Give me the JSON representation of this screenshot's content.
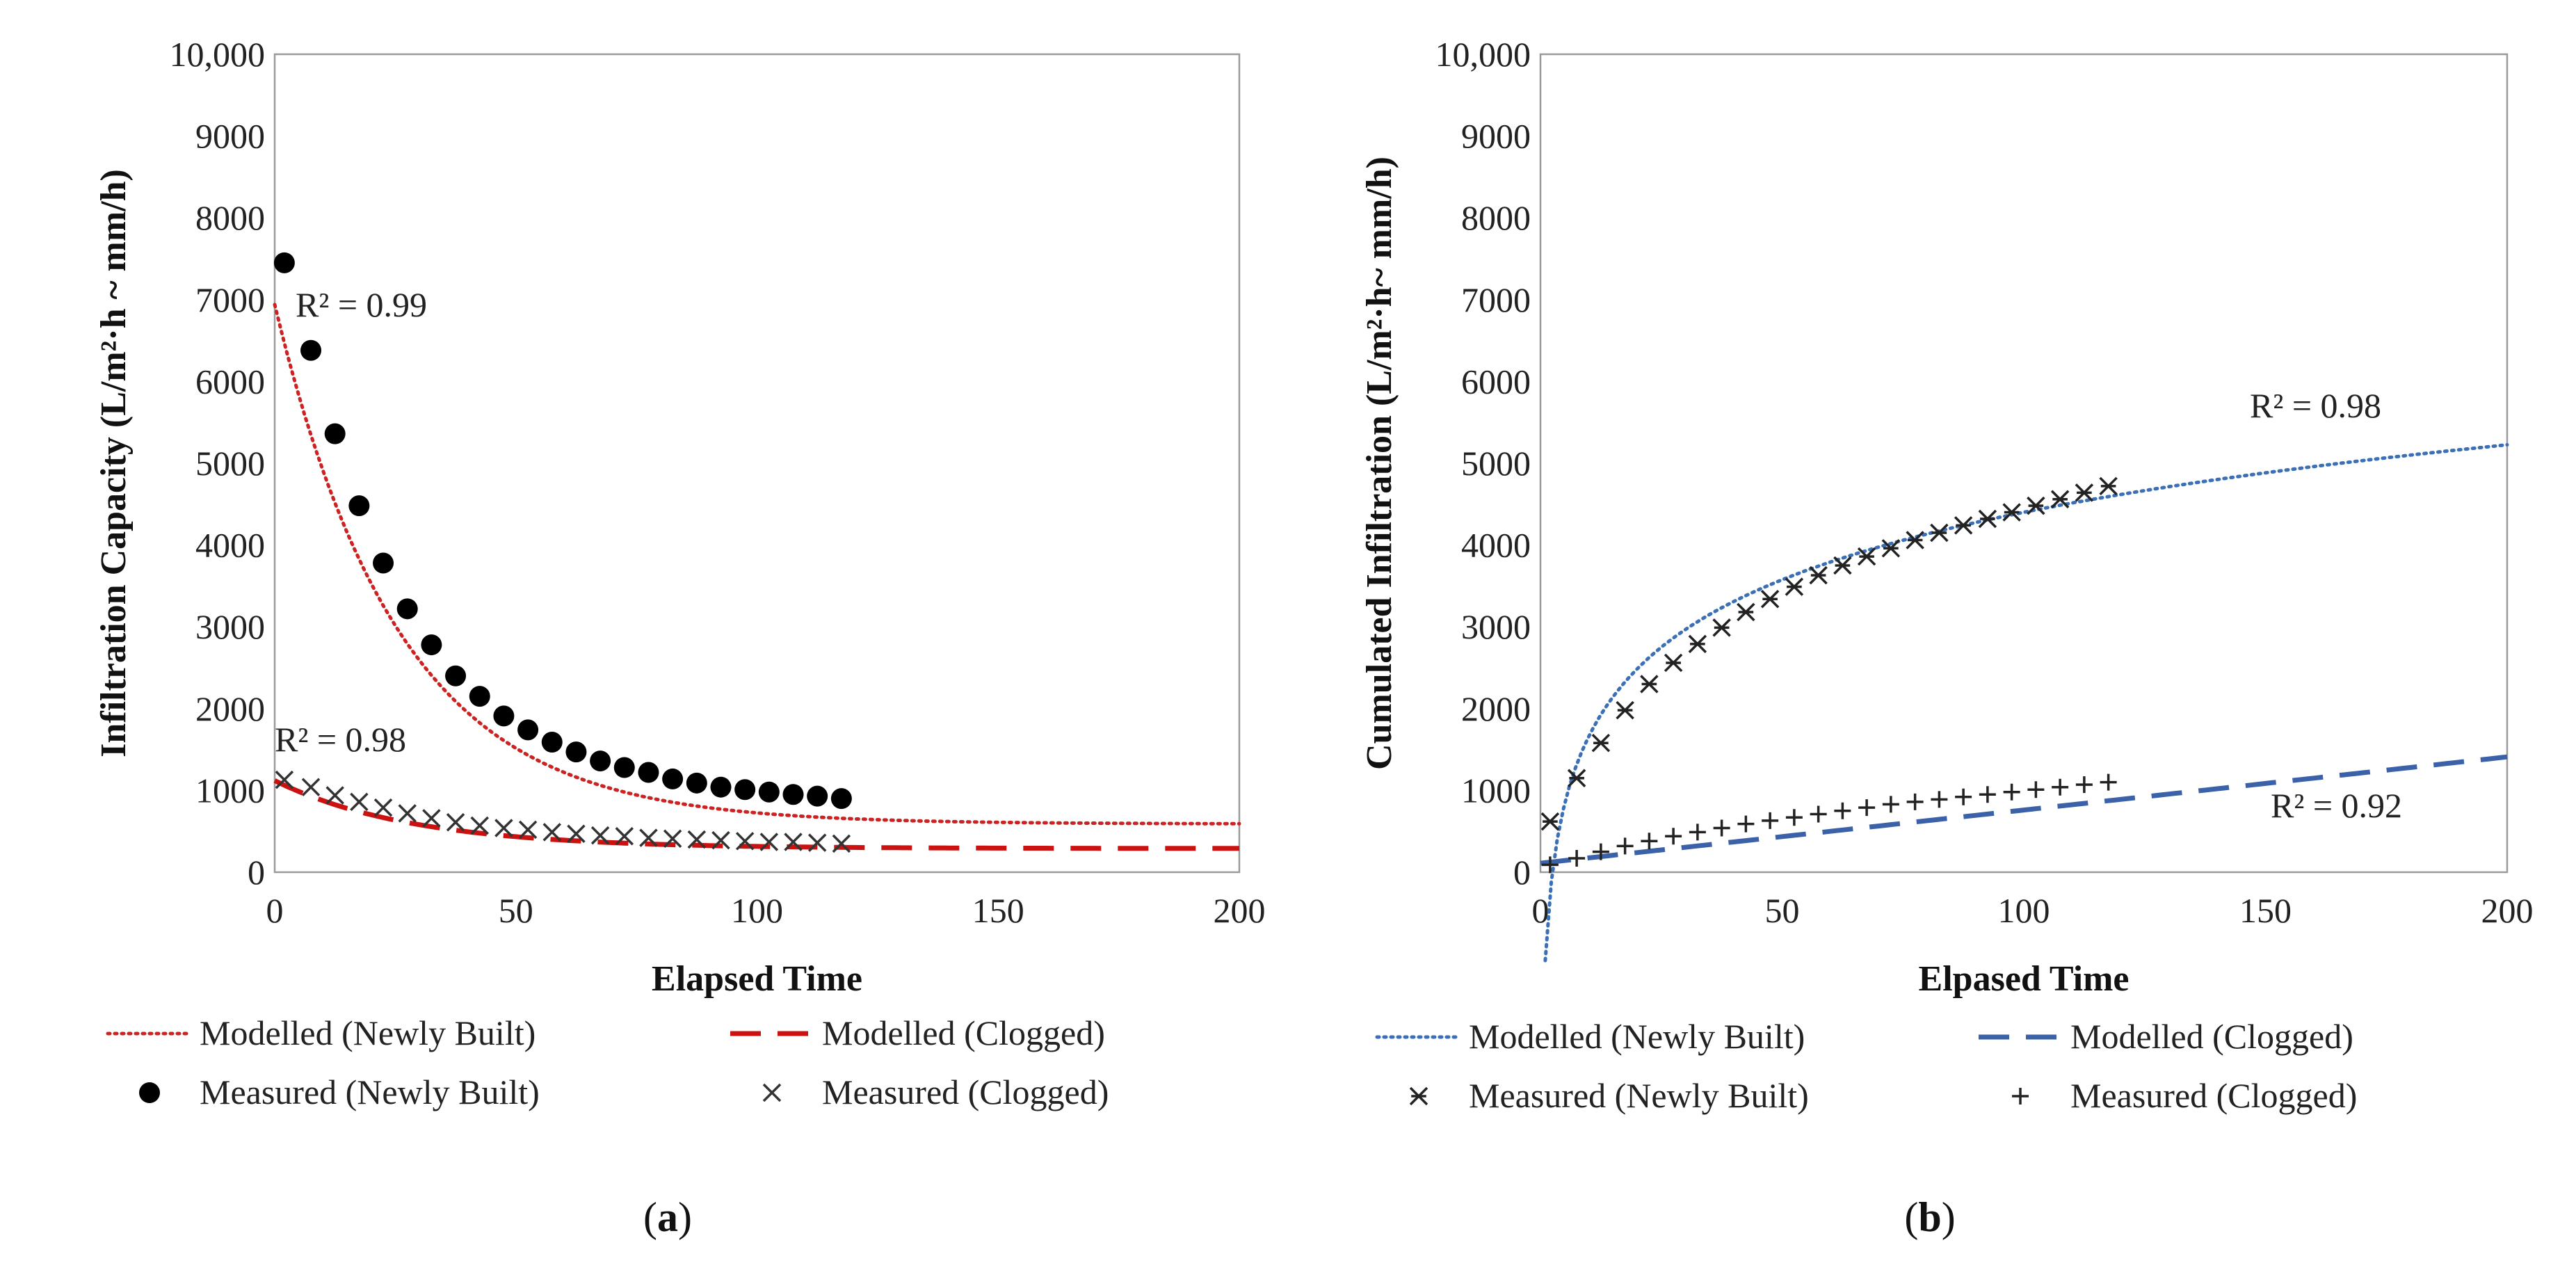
{
  "chart_data": [
    {
      "panel_label": "a",
      "type": "scatter",
      "xlabel": "Elapsed Time",
      "ylabel": "Infiltration Capacity (L/m²·h ~ mm/h)",
      "xlim": [
        0,
        200
      ],
      "ylim": [
        0,
        10000
      ],
      "xticks": [
        "0",
        "50",
        "100",
        "150",
        "200"
      ],
      "yticks": [
        "0",
        "1000",
        "2000",
        "3000",
        "4000",
        "5000",
        "6000",
        "7000",
        "8000",
        "9000",
        "10,000"
      ],
      "annotations": [
        "R² = 0.99",
        "R² = 0.98"
      ],
      "legend": [
        "Modelled (Newly Built)",
        "Modelled (Clogged)",
        "Measured (Newly Built)",
        "Measured (Clogged)"
      ],
      "series": [
        {
          "name": "Modelled (Newly Built)",
          "kind": "line",
          "style": "dotted",
          "color": "#cc2222",
          "model": {
            "type": "exp",
            "a": 590,
            "b": 6350,
            "k": 0.0385
          },
          "x_range": [
            0,
            200
          ]
        },
        {
          "name": "Modelled (Clogged)",
          "kind": "line",
          "style": "dashed",
          "color": "#cc1111",
          "model": {
            "type": "exp",
            "a": 290,
            "b": 830,
            "k": 0.035
          },
          "x_range": [
            0,
            200
          ]
        },
        {
          "name": "Measured (Newly Built)",
          "kind": "points",
          "marker": "dot",
          "color": "#000000",
          "x": [
            2,
            7.5,
            12.5,
            17.5,
            22.5,
            27.5,
            32.5,
            37.5,
            42.5,
            47.5,
            52.5,
            57.5,
            62.5,
            67.5,
            72.5,
            77.5,
            82.5,
            87.5,
            92.5,
            97.5,
            102.5,
            107.5,
            112.5,
            117.5
          ],
          "y": [
            7450,
            6380,
            5360,
            4480,
            3780,
            3220,
            2780,
            2400,
            2150,
            1910,
            1740,
            1590,
            1470,
            1360,
            1280,
            1220,
            1140,
            1090,
            1040,
            1010,
            980,
            950,
            930,
            900
          ]
        },
        {
          "name": "Measured (Clogged)",
          "kind": "points",
          "marker": "x",
          "color": "#333333",
          "x": [
            2,
            7.5,
            12.5,
            17.5,
            22.5,
            27.5,
            32.5,
            37.5,
            42.5,
            47.5,
            52.5,
            57.5,
            62.5,
            67.5,
            72.5,
            77.5,
            82.5,
            87.5,
            92.5,
            97.5,
            102.5,
            107.5,
            112.5,
            117.5
          ],
          "y": [
            1130,
            1040,
            940,
            860,
            790,
            720,
            660,
            610,
            570,
            540,
            520,
            490,
            470,
            450,
            440,
            420,
            410,
            400,
            390,
            380,
            370,
            370,
            360,
            350
          ]
        }
      ]
    },
    {
      "panel_label": "b",
      "type": "scatter",
      "xlabel": "Elpased Time",
      "ylabel": "Cumulated Infiltration (L/m²·h~ mm/h)",
      "xlim": [
        0,
        200
      ],
      "ylim": [
        0,
        10000
      ],
      "xticks": [
        "0",
        "50",
        "100",
        "150",
        "200"
      ],
      "yticks": [
        "0",
        "1000",
        "2000",
        "3000",
        "4000",
        "5000",
        "6000",
        "7000",
        "8000",
        "9000",
        "10,000"
      ],
      "annotations": [
        "R² = 0.98",
        "R² = 0.92"
      ],
      "legend": [
        "Modelled (Newly Built)",
        "Modelled (Clogged)",
        "Measured (Newly Built)",
        "Measured (Clogged)"
      ],
      "series": [
        {
          "name": "Modelled (Newly Built)",
          "kind": "line",
          "style": "dotted",
          "color": "#3b6fb6",
          "model": {
            "type": "log",
            "a": -1080,
            "b": 1190
          },
          "x_range": [
            1,
            200
          ]
        },
        {
          "name": "Modelled (Clogged)",
          "kind": "line",
          "style": "dashed",
          "color": "#3b62a8",
          "model": {
            "type": "linear",
            "a": 110,
            "b": 6.5
          },
          "x_range": [
            0,
            200
          ]
        },
        {
          "name": "Measured (Newly Built)",
          "kind": "points",
          "marker": "star",
          "color": "#222222",
          "x": [
            2,
            7.5,
            12.5,
            17.5,
            22.5,
            27.5,
            32.5,
            37.5,
            42.5,
            47.5,
            52.5,
            57.5,
            62.5,
            67.5,
            72.5,
            77.5,
            82.5,
            87.5,
            92.5,
            97.5,
            102.5,
            107.5,
            112.5,
            117.5
          ],
          "y": [
            620,
            1150,
            1580,
            1980,
            2300,
            2560,
            2790,
            2990,
            3180,
            3340,
            3490,
            3630,
            3750,
            3860,
            3960,
            4060,
            4150,
            4240,
            4320,
            4400,
            4480,
            4560,
            4640,
            4720
          ]
        },
        {
          "name": "Measured (Clogged)",
          "kind": "points",
          "marker": "plus",
          "color": "#222222",
          "x": [
            2,
            7.5,
            12.5,
            17.5,
            22.5,
            27.5,
            32.5,
            37.5,
            42.5,
            47.5,
            52.5,
            57.5,
            62.5,
            67.5,
            72.5,
            77.5,
            82.5,
            87.5,
            92.5,
            97.5,
            102.5,
            107.5,
            112.5,
            117.5
          ],
          "y": [
            90,
            170,
            250,
            320,
            380,
            440,
            490,
            540,
            590,
            630,
            670,
            710,
            750,
            790,
            830,
            860,
            890,
            920,
            950,
            980,
            1010,
            1040,
            1070,
            1100
          ]
        }
      ]
    }
  ]
}
